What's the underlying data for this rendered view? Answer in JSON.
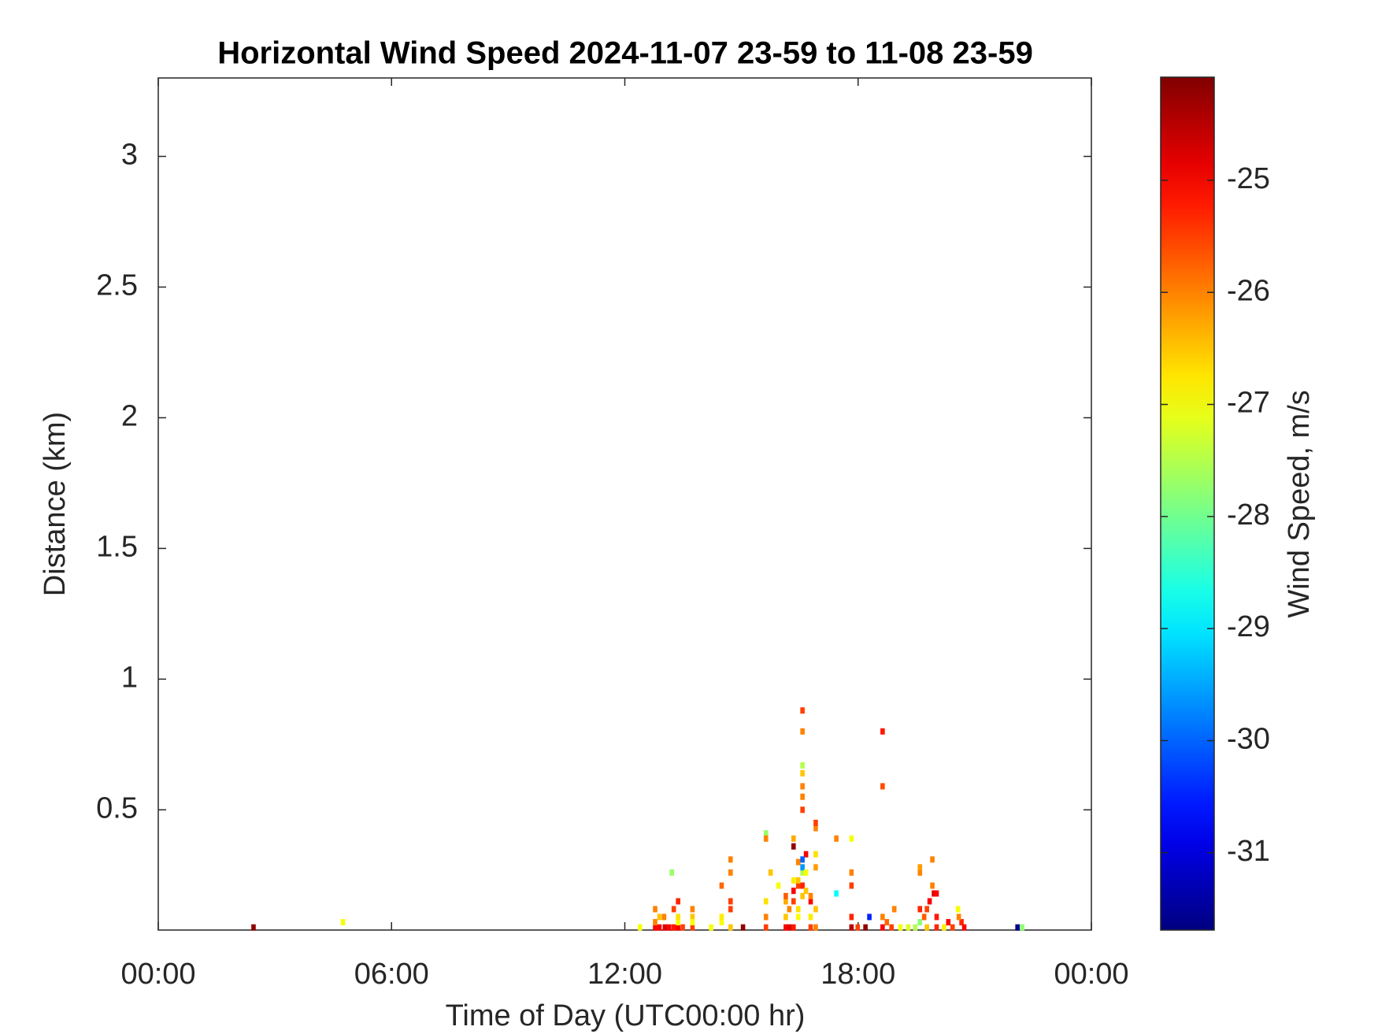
{
  "chart_data": {
    "type": "heatmap",
    "title": "Horizontal Wind Speed 2024-11-07 23-59 to 11-08 23-59",
    "xlabel": "Time of Day (UTC00:00 hr)",
    "ylabel": "Distance (km)",
    "colorbar_label": "Wind Speed, m/s",
    "colormap": "jet",
    "xlim": [
      0,
      24
    ],
    "xticks": [
      {
        "value": 0,
        "label": "00:00"
      },
      {
        "value": 6,
        "label": "06:00"
      },
      {
        "value": 12,
        "label": "12:00"
      },
      {
        "value": 18,
        "label": "18:00"
      },
      {
        "value": 24,
        "label": "00:00"
      }
    ],
    "ylim": [
      0.04,
      3.3
    ],
    "yticks": [
      0.5,
      1,
      1.5,
      2,
      2.5,
      3
    ],
    "clim": [
      -31.69,
      -24.08
    ],
    "cticks": [
      -31,
      -30,
      -29,
      -28,
      -27,
      -26,
      -25
    ],
    "x": [
      2.45,
      4.75,
      12.39,
      12.78,
      12.89,
      13.03,
      13.14,
      13.26,
      13.37,
      13.49,
      13.74,
      12.78,
      12.89,
      13.01,
      12.78,
      13.37,
      13.37,
      13.37,
      13.26,
      13.74,
      13.74,
      13.74,
      13.21,
      14.22,
      14.49,
      14.49,
      14.49,
      14.72,
      14.72,
      14.72,
      14.72,
      14.72,
      15.04,
      15.63,
      15.63,
      15.63,
      15.63,
      15.63,
      15.75,
      15.95,
      16.14,
      16.23,
      16.34,
      16.14,
      16.23,
      16.14,
      16.34,
      16.46,
      16.46,
      16.34,
      16.46,
      16.57,
      16.57,
      16.34,
      16.46,
      16.14,
      16.57,
      16.57,
      16.46,
      16.66,
      16.34,
      16.34,
      16.57,
      16.66,
      16.66,
      16.78,
      16.78,
      16.91,
      16.91,
      16.78,
      16.91,
      16.91,
      16.91,
      16.57,
      16.57,
      16.57,
      16.57,
      16.57,
      16.57,
      16.57,
      16.78,
      16.91,
      17.44,
      17.44,
      17.83,
      17.83,
      17.83,
      17.83,
      17.83,
      17.99,
      18.19,
      18.29,
      18.63,
      18.63,
      18.74,
      18.86,
      18.93,
      19.09,
      19.29,
      19.47,
      19.59,
      19.59,
      19.59,
      19.59,
      19.7,
      19.77,
      19.77,
      19.84,
      19.95,
      20.02,
      19.91,
      19.91,
      20.02,
      20.02,
      20.21,
      20.32,
      20.43,
      20.57,
      20.66,
      20.73,
      20.59,
      18.63,
      18.63,
      22.1,
      22.22
    ],
    "y": [
      0.05,
      0.07,
      0.05,
      0.05,
      0.05,
      0.05,
      0.05,
      0.05,
      0.05,
      0.05,
      0.05,
      0.07,
      0.09,
      0.09,
      0.12,
      0.07,
      0.09,
      0.15,
      0.12,
      0.09,
      0.12,
      0.07,
      0.26,
      0.05,
      0.07,
      0.09,
      0.21,
      0.05,
      0.12,
      0.15,
      0.26,
      0.31,
      0.05,
      0.05,
      0.09,
      0.15,
      0.41,
      0.39,
      0.26,
      0.21,
      0.05,
      0.05,
      0.05,
      0.09,
      0.12,
      0.15,
      0.15,
      0.12,
      0.09,
      0.19,
      0.21,
      0.21,
      0.17,
      0.23,
      0.23,
      0.17,
      0.26,
      0.28,
      0.3,
      0.33,
      0.36,
      0.39,
      0.31,
      0.26,
      0.19,
      0.15,
      0.09,
      0.12,
      0.05,
      0.05,
      0.33,
      0.43,
      0.45,
      0.5,
      0.55,
      0.59,
      0.64,
      0.67,
      0.8,
      0.88,
      0.17,
      0.28,
      0.39,
      0.18,
      0.39,
      0.26,
      0.21,
      0.09,
      0.05,
      0.05,
      0.05,
      0.09,
      0.05,
      0.09,
      0.07,
      0.05,
      0.12,
      0.05,
      0.05,
      0.05,
      0.07,
      0.26,
      0.28,
      0.12,
      0.09,
      0.05,
      0.12,
      0.15,
      0.18,
      0.18,
      0.21,
      0.31,
      0.09,
      0.05,
      0.05,
      0.07,
      0.05,
      0.12,
      0.07,
      0.05,
      0.09,
      0.8,
      0.59,
      0.05,
      0.05
    ],
    "values": [
      -24.2,
      -27,
      -27,
      -25,
      -25,
      -24.8,
      -25,
      -25.2,
      -25,
      -25.5,
      -25.5,
      -26,
      -26.5,
      -26,
      -26,
      -27,
      -26.7,
      -25.3,
      -25.5,
      -26.5,
      -26,
      -27,
      -27.7,
      -27,
      -27,
      -26.8,
      -25.8,
      -26.5,
      -25.5,
      -25.5,
      -26,
      -26,
      -24.2,
      -25.5,
      -26,
      -26.7,
      -27.7,
      -26,
      -26.5,
      -27,
      -25,
      -24.8,
      -25.2,
      -26.5,
      -26,
      -26.3,
      -25.5,
      -26.7,
      -27,
      -25,
      -25.5,
      -25.3,
      -26.5,
      -26.8,
      -26.5,
      -25.7,
      -27.5,
      -29.6,
      -26,
      -25,
      -24.2,
      -26.3,
      -30,
      -27,
      -26.5,
      -25,
      -26.8,
      -26.5,
      -26,
      -25.5,
      -26.7,
      -26,
      -25.5,
      -25.5,
      -26,
      -26,
      -26.5,
      -27.5,
      -26,
      -25.5,
      -26,
      -26.2,
      -26,
      -28.8,
      -27,
      -26,
      -25.5,
      -25.3,
      -24.5,
      -25.5,
      -24.2,
      -30.5,
      -25,
      -26,
      -25.8,
      -25.5,
      -26,
      -27,
      -27.2,
      -27.5,
      -27.8,
      -26,
      -26.2,
      -25.3,
      -25.7,
      -26.5,
      -25.5,
      -25,
      -24.8,
      -25,
      -26,
      -26,
      -25.2,
      -25.3,
      -26.8,
      -25,
      -25.5,
      -27,
      -25.3,
      -25,
      -26,
      -25.2,
      -25.6,
      -31.6,
      -27.8
    ]
  }
}
